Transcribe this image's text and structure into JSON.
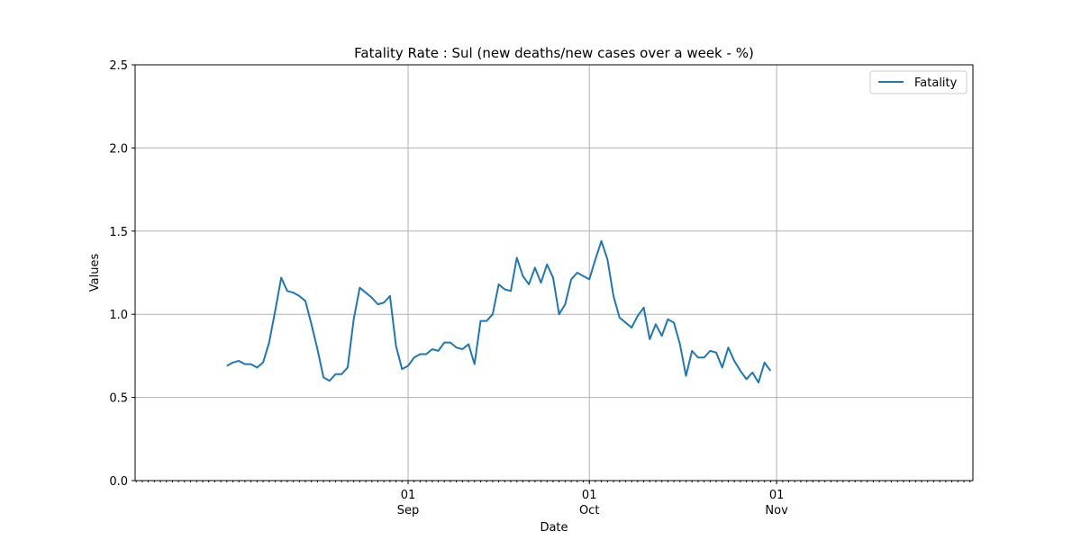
{
  "chart_data": {
    "type": "line",
    "title": "Fatality Rate : Sul  (new deaths/new cases over a week - %)",
    "xlabel": "Date",
    "ylabel": "Values",
    "ylim": [
      0,
      2.5
    ],
    "xlim": [
      "2020-08-01",
      "2020-11-01"
    ],
    "yticks": [
      "0.0",
      "0.5",
      "1.0",
      "1.5",
      "2.0",
      "2.5"
    ],
    "xticks": [
      {
        "date": "2020-09-01",
        "day": "01",
        "month": "Sep"
      },
      {
        "date": "2020-10-01",
        "day": "01",
        "month": "Oct"
      },
      {
        "date": "2020-11-01",
        "day": "01",
        "month": "Nov"
      }
    ],
    "grid": true,
    "legend_position": "top-right",
    "line_color": "#1f77b4",
    "series": [
      {
        "name": "Fatality",
        "x_start": "2020-08-02",
        "values": [
          0.69,
          0.71,
          0.72,
          0.7,
          0.7,
          0.68,
          0.71,
          0.83,
          1.02,
          1.22,
          1.14,
          1.13,
          1.11,
          1.08,
          0.94,
          0.79,
          0.62,
          0.6,
          0.64,
          0.64,
          0.68,
          0.97,
          1.16,
          1.13,
          1.1,
          1.06,
          1.07,
          1.11,
          0.81,
          0.67,
          0.69,
          0.74,
          0.76,
          0.76,
          0.79,
          0.78,
          0.83,
          0.83,
          0.8,
          0.79,
          0.82,
          0.7,
          0.96,
          0.96,
          1.0,
          1.18,
          1.15,
          1.14,
          1.34,
          1.23,
          1.18,
          1.28,
          1.19,
          1.3,
          1.22,
          1.0,
          1.06,
          1.21,
          1.25,
          1.23,
          1.21,
          1.33,
          1.44,
          1.33,
          1.11,
          0.98,
          0.95,
          0.92,
          0.99,
          1.04,
          0.85,
          0.94,
          0.87,
          0.97,
          0.95,
          0.82,
          0.63,
          0.78,
          0.74,
          0.74,
          0.78,
          0.77,
          0.68,
          0.8,
          0.72,
          0.66,
          0.61,
          0.65,
          0.59,
          0.71,
          0.66
        ]
      }
    ]
  }
}
